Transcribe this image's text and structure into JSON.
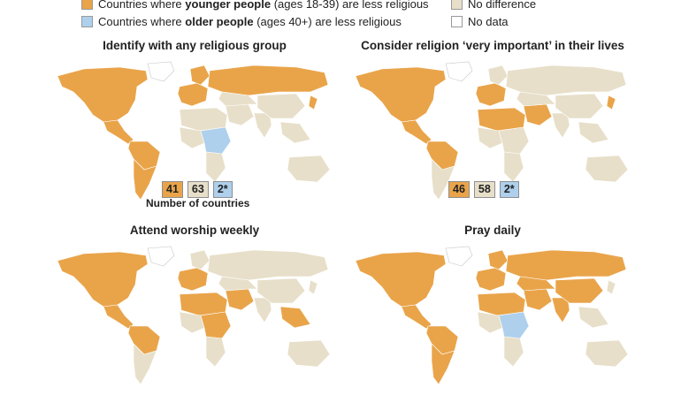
{
  "legend": {
    "younger": {
      "prefix": "Countries where ",
      "bold": "younger people",
      "suffix": " (ages 18-39) are less religious",
      "color": "#e9a44a"
    },
    "older": {
      "prefix": "Countries where ",
      "bold": "older people",
      "suffix": " (ages 40+) are less religious",
      "color": "#aed0ec"
    },
    "nodiff": {
      "label": "No difference",
      "color": "#e7dfc9"
    },
    "nodata": {
      "label": "No data",
      "color": "#ffffff"
    }
  },
  "panels": [
    {
      "title": "Identify with any religious group",
      "counts": {
        "younger": "41",
        "nodiff": "63",
        "older": "2*"
      },
      "caption": "Number of countries"
    },
    {
      "title": "Consider religion ‘very important’ in their lives",
      "counts": {
        "younger": "46",
        "nodiff": "58",
        "older": "2*"
      }
    },
    {
      "title": "Attend worship weekly"
    },
    {
      "title": "Pray daily"
    }
  ],
  "map_regions": [
    {
      "name": "north-america",
      "panel_fills": [
        "younger",
        "younger",
        "younger",
        "younger"
      ]
    },
    {
      "name": "greenland",
      "panel_fills": [
        "nodata",
        "nodata",
        "nodata",
        "nodata"
      ]
    },
    {
      "name": "central-america",
      "panel_fills": [
        "younger",
        "younger",
        "younger",
        "younger"
      ]
    },
    {
      "name": "south-america-north",
      "panel_fills": [
        "younger",
        "younger",
        "younger",
        "younger"
      ]
    },
    {
      "name": "south-america-south",
      "panel_fills": [
        "younger",
        "nodiff",
        "nodiff",
        "younger"
      ]
    },
    {
      "name": "europe-west",
      "panel_fills": [
        "younger",
        "younger",
        "younger",
        "younger"
      ]
    },
    {
      "name": "scandinavia",
      "panel_fills": [
        "younger",
        "nodiff",
        "nodiff",
        "younger"
      ]
    },
    {
      "name": "russia",
      "panel_fills": [
        "younger",
        "nodiff",
        "nodiff",
        "younger"
      ]
    },
    {
      "name": "north-africa",
      "panel_fills": [
        "nodiff",
        "younger",
        "younger",
        "younger"
      ]
    },
    {
      "name": "west-africa",
      "panel_fills": [
        "nodiff",
        "nodiff",
        "nodiff",
        "nodiff"
      ]
    },
    {
      "name": "central-africa",
      "panel_fills": [
        "older",
        "nodiff",
        "younger",
        "older"
      ]
    },
    {
      "name": "southern-africa",
      "panel_fills": [
        "nodiff",
        "nodiff",
        "nodiff",
        "nodiff"
      ]
    },
    {
      "name": "middle-east",
      "panel_fills": [
        "nodiff",
        "younger",
        "younger",
        "younger"
      ]
    },
    {
      "name": "central-asia",
      "panel_fills": [
        "nodiff",
        "nodiff",
        "nodiff",
        "younger"
      ]
    },
    {
      "name": "india",
      "panel_fills": [
        "nodiff",
        "nodiff",
        "nodiff",
        "younger"
      ]
    },
    {
      "name": "china",
      "panel_fills": [
        "nodiff",
        "nodiff",
        "nodiff",
        "younger"
      ]
    },
    {
      "name": "southeast-asia",
      "panel_fills": [
        "nodiff",
        "nodiff",
        "younger",
        "nodiff"
      ]
    },
    {
      "name": "japan",
      "panel_fills": [
        "younger",
        "younger",
        "nodiff",
        "nodiff"
      ]
    },
    {
      "name": "australia",
      "panel_fills": [
        "nodiff",
        "nodiff",
        "nodiff",
        "nodiff"
      ]
    }
  ]
}
